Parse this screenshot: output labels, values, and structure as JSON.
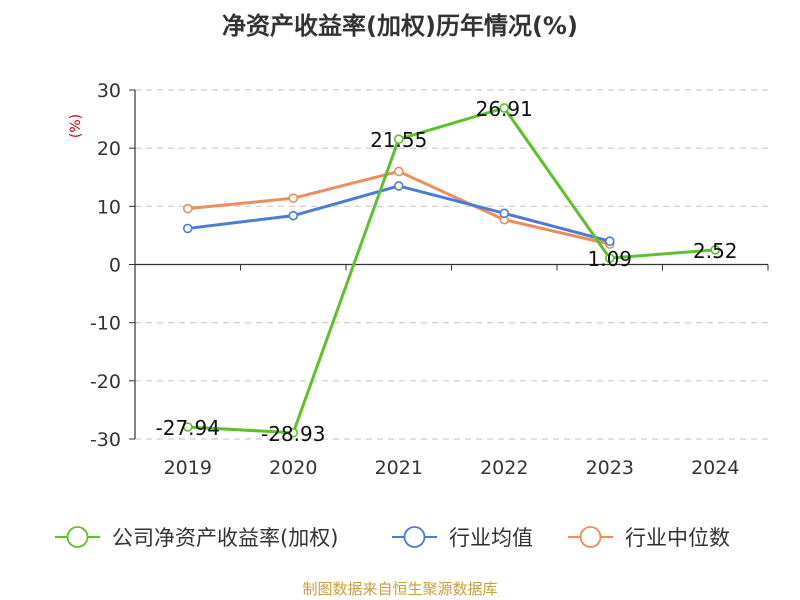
{
  "chart_data": {
    "type": "line",
    "title": "净资产收益率(加权)历年情况(%)",
    "ylabel": "(%)",
    "xlabel": "",
    "categories": [
      "2019",
      "2020",
      "2021",
      "2022",
      "2023",
      "2024"
    ],
    "ylim": [
      -30,
      30
    ],
    "yticks": [
      30,
      20,
      10,
      0,
      -10,
      -20,
      -30
    ],
    "grid": true,
    "legend_position": "bottom",
    "series": [
      {
        "name": "公司净资产收益率(加权)",
        "color": "#5dc12a",
        "values": [
          -27.94,
          -28.93,
          21.55,
          26.91,
          1.09,
          2.52
        ],
        "labels": [
          "-27.94",
          "-28.93",
          "21.55",
          "26.91",
          "1.09",
          "2.52"
        ]
      },
      {
        "name": "行业均值",
        "color": "#4a7bd8",
        "values": [
          6.2,
          8.4,
          13.5,
          8.8,
          4.0,
          null
        ]
      },
      {
        "name": "行业中位数",
        "color": "#f08c5a",
        "values": [
          9.6,
          11.4,
          16.0,
          7.7,
          3.5,
          null
        ]
      }
    ]
  },
  "colors": {
    "ylabel": "#cc0000",
    "source": "#c8a040",
    "grid": "#cccccc",
    "axis": "#333333"
  },
  "source": "制图数据来自恒生聚源数据库"
}
